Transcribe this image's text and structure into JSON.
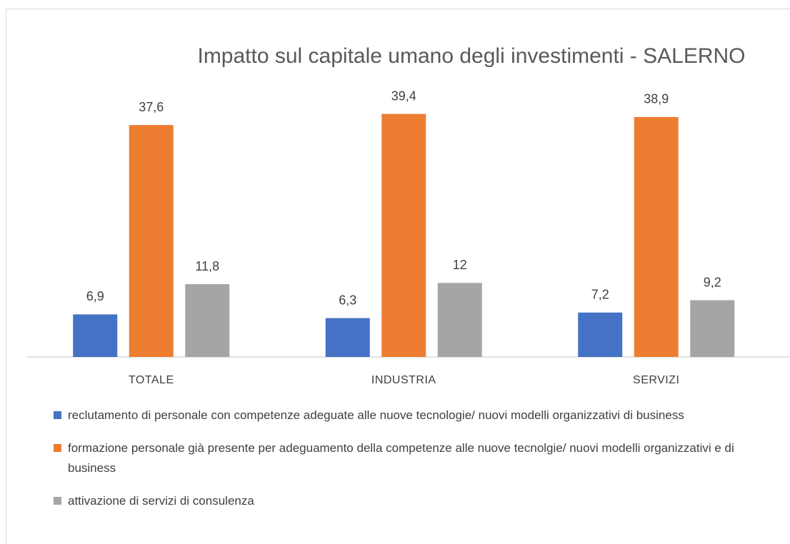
{
  "chart_data": {
    "type": "bar",
    "title": "Impatto sul capitale umano degli investimenti - SALERNO",
    "categories": [
      "TOTALE",
      "INDUSTRIA",
      "SERVIZI"
    ],
    "series": [
      {
        "name": "reclutamento di personale con competenze adeguate alle nuove tecnologie/ nuovi modelli organizzativi di business",
        "color": "#4472c4",
        "values": [
          6.9,
          6.3,
          7.2
        ],
        "value_labels": [
          "6,9",
          "6,3",
          "7,2"
        ]
      },
      {
        "name": "formazione personale già presente per adeguamento della competenze alle nuove tecnolgie/ nuovi modelli organizzativi e di business",
        "color": "#ed7d31",
        "values": [
          37.6,
          39.4,
          38.9
        ],
        "value_labels": [
          "37,6",
          "39,4",
          "38,9"
        ]
      },
      {
        "name": "attivazione di servizi di consulenza",
        "color": "#a5a5a5",
        "values": [
          11.8,
          12,
          9.2
        ],
        "value_labels": [
          "11,8",
          "12",
          "9,2"
        ]
      }
    ],
    "legend": "bottom"
  }
}
